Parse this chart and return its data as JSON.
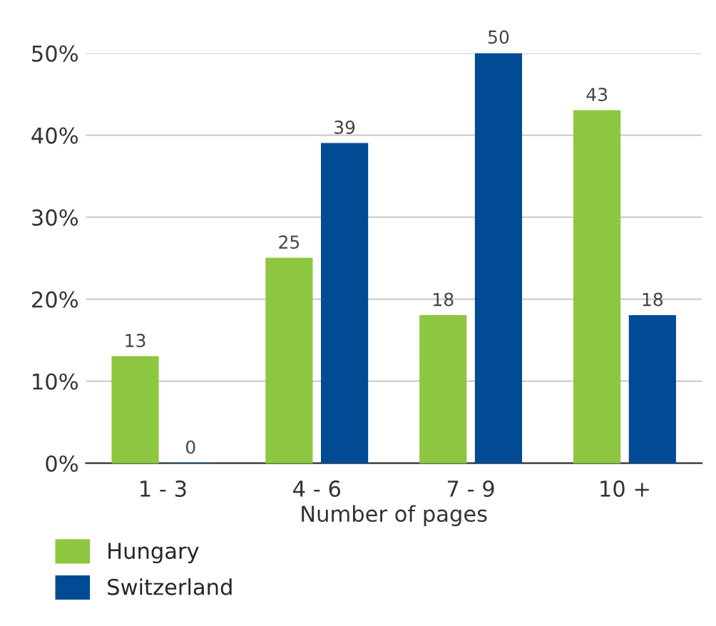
{
  "chart_data": {
    "type": "bar",
    "xlabel": "Number of pages",
    "categories": [
      "1 - 3",
      "4 - 6",
      "7 - 9",
      "10 +"
    ],
    "series": [
      {
        "name": "Hungary",
        "color": "#8dc63f",
        "values": [
          13,
          25,
          18,
          43
        ]
      },
      {
        "name": "Switzerland",
        "color": "#004b93",
        "values": [
          0,
          39,
          50,
          18
        ]
      }
    ],
    "ylim": [
      0,
      50
    ],
    "yticks": [
      {
        "value": 0,
        "label": "0%"
      },
      {
        "value": 10,
        "label": "10%"
      },
      {
        "value": 20,
        "label": "20%"
      },
      {
        "value": 30,
        "label": "30%"
      },
      {
        "value": 40,
        "label": "40%"
      },
      {
        "value": 50,
        "label": "50%"
      }
    ],
    "grid": "y",
    "legend": "bottom",
    "data_labels": true
  }
}
